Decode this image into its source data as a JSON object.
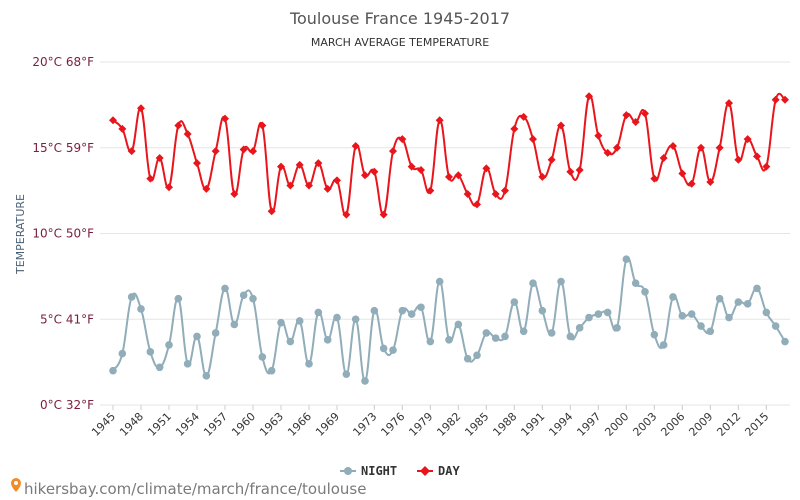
{
  "chart_data": {
    "type": "line",
    "title": "Toulouse France 1945-2017",
    "subtitle": "MARCH AVERAGE TEMPERATURE",
    "ylabel": "TEMPERATURE",
    "y_ticks": [
      {
        "value": 0,
        "label": "0°C 32°F"
      },
      {
        "value": 5,
        "label": "5°C 41°F"
      },
      {
        "value": 10,
        "label": "10°C 50°F"
      },
      {
        "value": 15,
        "label": "15°C 59°F"
      },
      {
        "value": 20,
        "label": "20°C 68°F"
      }
    ],
    "ylim": [
      0,
      20
    ],
    "xlim": [
      1945,
      2017
    ],
    "x_tick_labels": [
      "1945",
      "1948",
      "1951",
      "1954",
      "1957",
      "1960",
      "1963",
      "1966",
      "1969",
      "1973",
      "1976",
      "1979",
      "1982",
      "1985",
      "1988",
      "1991",
      "1994",
      "1997",
      "2000",
      "2003",
      "2006",
      "2009",
      "2012",
      "2015"
    ],
    "x": [
      1945,
      1946,
      1947,
      1948,
      1949,
      1950,
      1951,
      1952,
      1953,
      1954,
      1955,
      1956,
      1957,
      1958,
      1959,
      1960,
      1961,
      1962,
      1963,
      1964,
      1965,
      1966,
      1967,
      1968,
      1969,
      1970,
      1971,
      1972,
      1973,
      1974,
      1975,
      1976,
      1977,
      1978,
      1979,
      1980,
      1981,
      1982,
      1983,
      1984,
      1985,
      1986,
      1987,
      1988,
      1989,
      1990,
      1991,
      1992,
      1993,
      1994,
      1995,
      1996,
      1997,
      1998,
      1999,
      2000,
      2001,
      2002,
      2003,
      2004,
      2005,
      2006,
      2007,
      2008,
      2009,
      2010,
      2011,
      2012,
      2013,
      2014,
      2015,
      2016,
      2017
    ],
    "series": [
      {
        "name": "NIGHT",
        "color": "#90adb9",
        "marker": "circle",
        "values": [
          2.0,
          3.0,
          6.3,
          5.6,
          3.1,
          2.2,
          3.5,
          6.2,
          2.4,
          4.0,
          1.7,
          4.2,
          6.8,
          4.7,
          6.4,
          6.2,
          2.8,
          2.0,
          4.8,
          3.7,
          4.9,
          2.4,
          5.4,
          3.8,
          5.1,
          1.8,
          5.0,
          1.4,
          5.5,
          3.3,
          3.2,
          5.5,
          5.3,
          5.7,
          3.7,
          7.2,
          3.8,
          4.7,
          2.7,
          2.9,
          4.2,
          3.9,
          4.0,
          6.0,
          4.3,
          7.1,
          5.5,
          4.2,
          7.2,
          4.0,
          4.5,
          5.1,
          5.3,
          5.4,
          4.5,
          8.5,
          7.1,
          6.6,
          4.1,
          3.5,
          6.3,
          5.2,
          5.3,
          4.6,
          4.3,
          6.2,
          5.1,
          6.0,
          5.9,
          6.8,
          5.4,
          4.6,
          3.7
        ]
      },
      {
        "name": "DAY",
        "color": "#e8161c",
        "marker": "diamond",
        "values": [
          16.6,
          16.1,
          14.8,
          17.3,
          13.2,
          14.4,
          12.7,
          16.3,
          15.8,
          14.1,
          12.6,
          14.8,
          16.7,
          12.3,
          14.9,
          14.8,
          16.3,
          11.3,
          13.9,
          12.8,
          14.0,
          12.8,
          14.1,
          12.6,
          13.1,
          11.1,
          15.1,
          13.4,
          13.6,
          11.1,
          14.8,
          15.5,
          13.9,
          13.7,
          12.5,
          16.6,
          13.3,
          13.4,
          12.3,
          11.7,
          13.8,
          12.3,
          12.5,
          16.1,
          16.8,
          15.5,
          13.3,
          14.3,
          16.3,
          13.6,
          13.7,
          18.0,
          15.7,
          14.7,
          15.0,
          16.9,
          16.5,
          17.0,
          13.2,
          14.4,
          15.1,
          13.5,
          12.9,
          15.0,
          13.0,
          15.0,
          17.6,
          14.3,
          15.5,
          14.5,
          13.9,
          17.8,
          17.8
        ]
      }
    ],
    "grid": true,
    "legend_position": "bottom-center"
  },
  "footer": {
    "source": "hikersbay.com/climate/march/france/toulouse"
  },
  "colors": {
    "title": "#555555",
    "ytick": "#7a1f3d",
    "pin_icon": "#f28c28"
  }
}
